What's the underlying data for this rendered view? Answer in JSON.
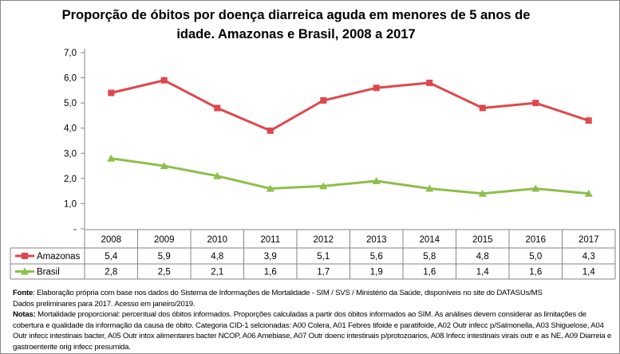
{
  "chart_data": {
    "type": "line",
    "title": "Proporção de óbitos por doença diarreica aguda em menores de 5 anos de idade. Amazonas e Brasil, 2008 a 2017",
    "categories": [
      "2008",
      "2009",
      "2010",
      "2011",
      "2012",
      "2013",
      "2014",
      "2015",
      "2016",
      "2017"
    ],
    "series": [
      {
        "name": "Amazonas",
        "color": "#E0474C",
        "marker": "square",
        "values": [
          5.4,
          5.9,
          4.8,
          3.9,
          5.1,
          5.6,
          5.8,
          4.8,
          5.0,
          4.3
        ],
        "labels": [
          "5,4",
          "5,9",
          "4,8",
          "3,9",
          "5,1",
          "5,6",
          "5,8",
          "4,8",
          "5,0",
          "4,3"
        ]
      },
      {
        "name": "Brasil",
        "color": "#8DBF4A",
        "marker": "triangle",
        "values": [
          2.8,
          2.5,
          2.1,
          1.6,
          1.7,
          1.9,
          1.6,
          1.4,
          1.6,
          1.4
        ],
        "labels": [
          "2,8",
          "2,5",
          "2,1",
          "1,6",
          "1,7",
          "1,9",
          "1,6",
          "1,4",
          "1,6",
          "1,4"
        ]
      }
    ],
    "ylim": [
      0,
      7
    ],
    "yticks": [
      "-",
      "1,0",
      "2,0",
      "3,0",
      "4,0",
      "5,0",
      "6,0",
      "7,0"
    ],
    "grid": false,
    "legend": "data-table"
  },
  "notes": {
    "fonte_label": "Fonte",
    "fonte_text": ": Elaboração própria  com base nos dados do Sistema de Informações de Mortalidade - SIM / SVS / Ministério  da Saúde,  disponíveis no site do DATASUs/MS",
    "fonte_text2": "Dados preliminares para 2017. Acesso em janeiro/2019.",
    "notas_label": "Notas:",
    "notas_text": "  Mortalidade proporcional: percentual dos óbitos informados.  Proporções calculadas a partir dos óbitos informados ao SIM. As análises devem considerar as limitações de cobertura e qualidade da informação da causa de óbito. Categoria CID-1 selcionadas: A00   Colera, A01  Febres tifoide e paratifoide, A02  Outr infecc p/Salmonella, A03  Shiguelose, A04 Outr infecc intestinais bacter, A05  Outr intox alimentares bacter NCOP, A06  Amebiase, A07  Outr doenc intestinais p/protozoarios, A08   Infecc intestinais virais outr e as NE, A09   Diarreia e gastroenterite orig infecc presumida."
  }
}
